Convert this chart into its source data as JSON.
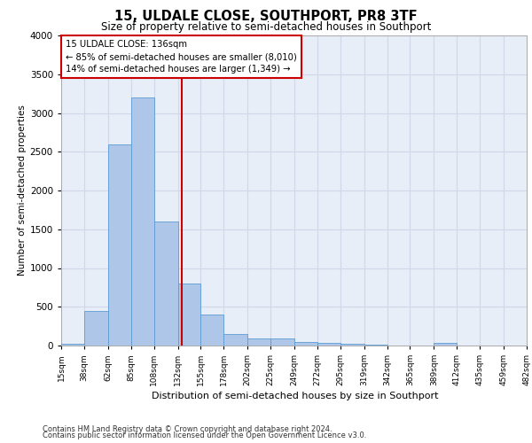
{
  "title1": "15, ULDALE CLOSE, SOUTHPORT, PR8 3TF",
  "title2": "Size of property relative to semi-detached houses in Southport",
  "xlabel": "Distribution of semi-detached houses by size in Southport",
  "ylabel": "Number of semi-detached properties",
  "footer1": "Contains HM Land Registry data © Crown copyright and database right 2024.",
  "footer2": "Contains public sector information licensed under the Open Government Licence v3.0.",
  "annotation_title": "15 ULDALE CLOSE: 136sqm",
  "annotation_line1": "← 85% of semi-detached houses are smaller (8,010)",
  "annotation_line2": "14% of semi-detached houses are larger (1,349) →",
  "property_size": 136,
  "bin_edges": [
    15,
    38,
    62,
    85,
    108,
    132,
    155,
    178,
    202,
    225,
    249,
    272,
    295,
    319,
    342,
    365,
    389,
    412,
    435,
    459,
    482
  ],
  "bar_heights": [
    20,
    450,
    2600,
    3200,
    1600,
    800,
    400,
    150,
    90,
    90,
    50,
    30,
    20,
    10,
    5,
    0,
    40,
    0,
    0,
    0
  ],
  "bar_color": "#aec6e8",
  "bar_edge_color": "#5b9bd5",
  "vline_color": "#cc0000",
  "annotation_box_color": "#ffffff",
  "annotation_box_edge": "#cc0000",
  "grid_color": "#d0d8e8",
  "background_color": "#e8eef8",
  "ylim": [
    0,
    4000
  ],
  "yticks": [
    0,
    500,
    1000,
    1500,
    2000,
    2500,
    3000,
    3500,
    4000
  ]
}
